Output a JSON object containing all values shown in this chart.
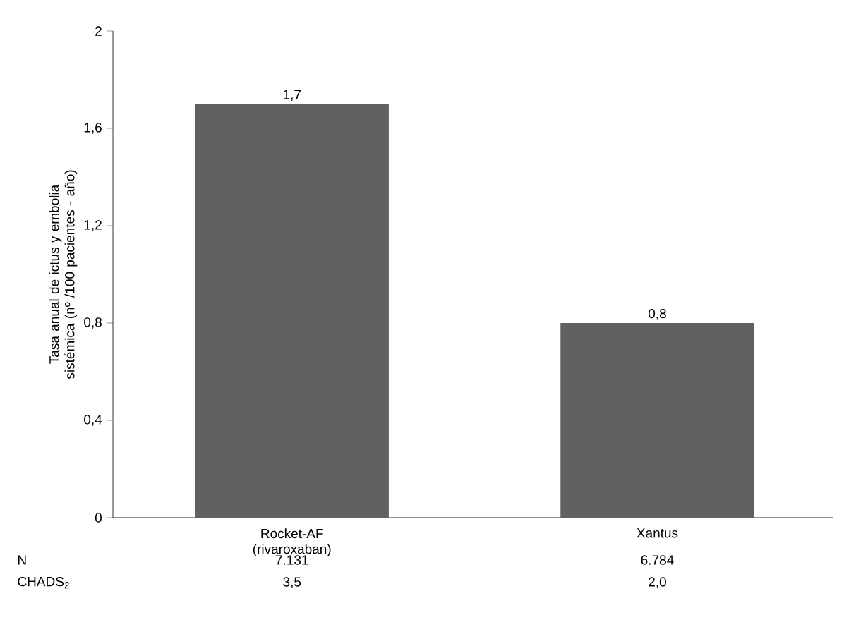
{
  "chart_data": {
    "type": "bar",
    "ylabel": "Tasa anual de ictus y embolia sistémica (nº /100 pacientes - año)",
    "categories": [
      "Rocket-AF (rivaroxaban)",
      "Xantus"
    ],
    "values": [
      1.7,
      0.8
    ],
    "value_labels": [
      "1,7",
      "0,8"
    ],
    "color": "#616161",
    "ylim": [
      0,
      2
    ],
    "yticks": [
      0,
      {
        "value": 0.4,
        "label": "0,4"
      },
      {
        "value": 0.8,
        "label": "0,8"
      },
      {
        "value": 1.2,
        "label": "1,2"
      },
      {
        "value": 1.6,
        "label": "1,6"
      },
      2
    ],
    "grid": false,
    "annotations": [
      "N",
      "7.131",
      "6.784",
      "CHADS$_{2}$",
      "3,5",
      "2,0"
    ]
  }
}
